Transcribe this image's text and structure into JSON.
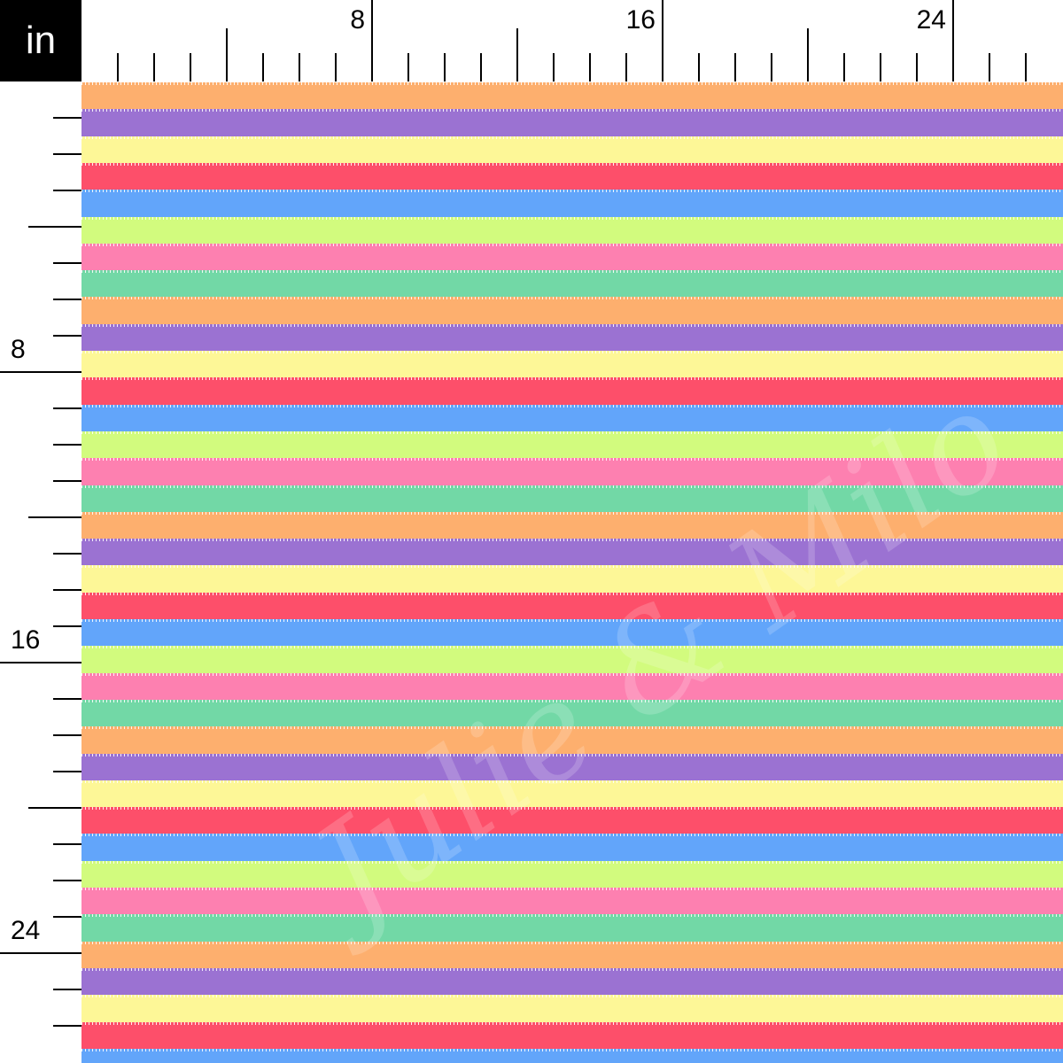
{
  "unit_label": "in",
  "top_ruler": {
    "labels": [
      "8",
      "16",
      "24"
    ]
  },
  "left_ruler": {
    "labels": [
      "8",
      "16",
      "24"
    ]
  },
  "pattern": {
    "type": "horizontal-stripes",
    "stripe_colors": [
      "#FDAF6E",
      "#9B72D2",
      "#FDF797",
      "#FD4F6A",
      "#62A5FA",
      "#D2FB7E",
      "#FD80B0",
      "#72D8A6"
    ]
  },
  "watermark": "Julie & Milo"
}
